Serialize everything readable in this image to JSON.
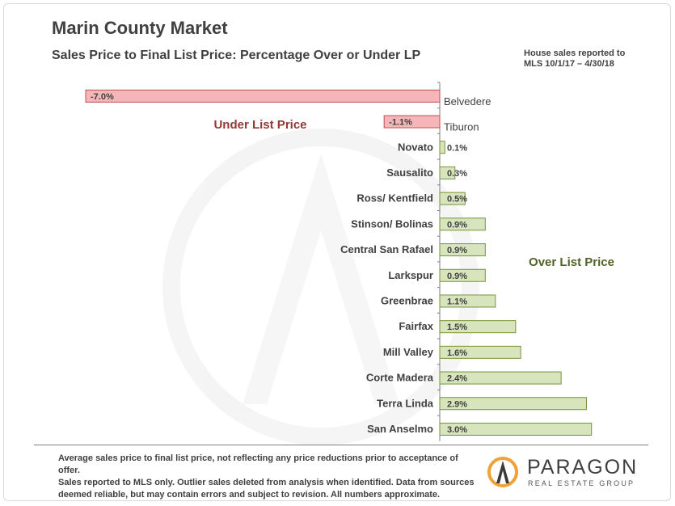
{
  "header": {
    "title": "Marin County Market",
    "subtitle": "Sales Price to Final List Price: Percentage Over or Under LP",
    "note_line1": "House sales reported to",
    "note_line2": "MLS 10/1/17 – 4/30/18"
  },
  "footer": {
    "text_line1": "Average sales price to final list price, not reflecting any price reductions prior to acceptance of offer.",
    "text_line2": "Sales reported to MLS only. Outlier sales deleted from analysis when identified. Data from sources",
    "text_line3": "deemed reliable, but may contain errors and subject to revision. All numbers approximate."
  },
  "logo": {
    "name": "PARAGON",
    "tagline": "REAL ESTATE GROUP"
  },
  "colors": {
    "negative_fill": "#f4b6b8",
    "negative_stroke": "#c0504d",
    "positive_fill": "#d7e4bd",
    "positive_stroke": "#77933c",
    "under_text": "#953735",
    "over_text": "#4f6228",
    "axis": "#7f7f7f",
    "logo_orange": "#f0a23a"
  },
  "chart_data": {
    "type": "bar",
    "orientation": "horizontal",
    "unit": "%",
    "xlim": [
      -7.0,
      3.0
    ],
    "categories": [
      "Belvedere",
      "Tiburon",
      "Novato",
      "Sausalito",
      "Ross/ Kentfield",
      "Stinson/ Bolinas",
      "Central San Rafael",
      "Larkspur",
      "Greenbrae",
      "Fairfax",
      "Mill Valley",
      "Corte Madera",
      "Terra Linda",
      "San Anselmo"
    ],
    "values": [
      -7.0,
      -1.1,
      0.1,
      0.3,
      0.5,
      0.9,
      0.9,
      0.9,
      1.1,
      1.5,
      1.6,
      2.4,
      2.9,
      3.0
    ],
    "labels": [
      "-7.0%",
      "-1.1%",
      "0.1%",
      "0.3%",
      "0.5%",
      "0.9%",
      "0.9%",
      "0.9%",
      "1.1%",
      "1.5%",
      "1.6%",
      "2.4%",
      "2.9%",
      "3.0%"
    ],
    "annotations": {
      "under": "Under List Price",
      "over": "Over List Price"
    }
  }
}
